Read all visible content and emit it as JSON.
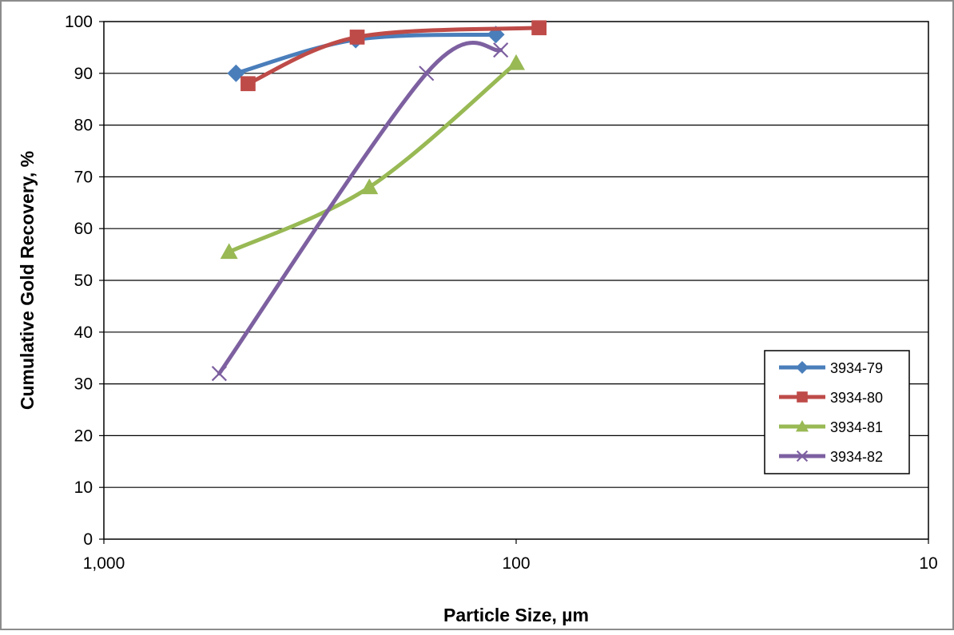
{
  "chart_data": {
    "type": "line",
    "title": "",
    "xlabel": "Particle Size, µm",
    "ylabel": "Cumulative Gold Recovery, %",
    "x_scale": "log",
    "x_reversed": true,
    "xlim": [
      1000,
      10
    ],
    "ylim": [
      0,
      100
    ],
    "x_ticks": [
      1000,
      100,
      10
    ],
    "x_tick_labels": [
      "1,000",
      "100",
      "10"
    ],
    "y_ticks": [
      0,
      10,
      20,
      30,
      40,
      50,
      60,
      70,
      80,
      90,
      100
    ],
    "y_tick_labels": [
      "0",
      "10",
      "20",
      "30",
      "40",
      "50",
      "60",
      "70",
      "80",
      "90",
      "100"
    ],
    "grid": "horizontal",
    "legend_position": "right",
    "series": [
      {
        "name": "3934-79",
        "color": "#4a7ebb",
        "marker": "diamond",
        "points": [
          [
            478,
            90
          ],
          [
            245,
            96.5
          ],
          [
            112,
            97.5
          ]
        ]
      },
      {
        "name": "3934-80",
        "color": "#be4b48",
        "marker": "square",
        "points": [
          [
            447,
            88
          ],
          [
            243,
            97
          ],
          [
            88,
            98.8
          ]
        ]
      },
      {
        "name": "3934-81",
        "color": "#98b954",
        "marker": "triangle",
        "points": [
          [
            497,
            55.5
          ],
          [
            227,
            68
          ],
          [
            100,
            92
          ]
        ]
      },
      {
        "name": "3934-82",
        "color": "#7d60a0",
        "marker": "x",
        "points": [
          [
            525,
            32
          ],
          [
            165,
            90
          ],
          [
            109,
            94.5
          ]
        ]
      }
    ]
  }
}
